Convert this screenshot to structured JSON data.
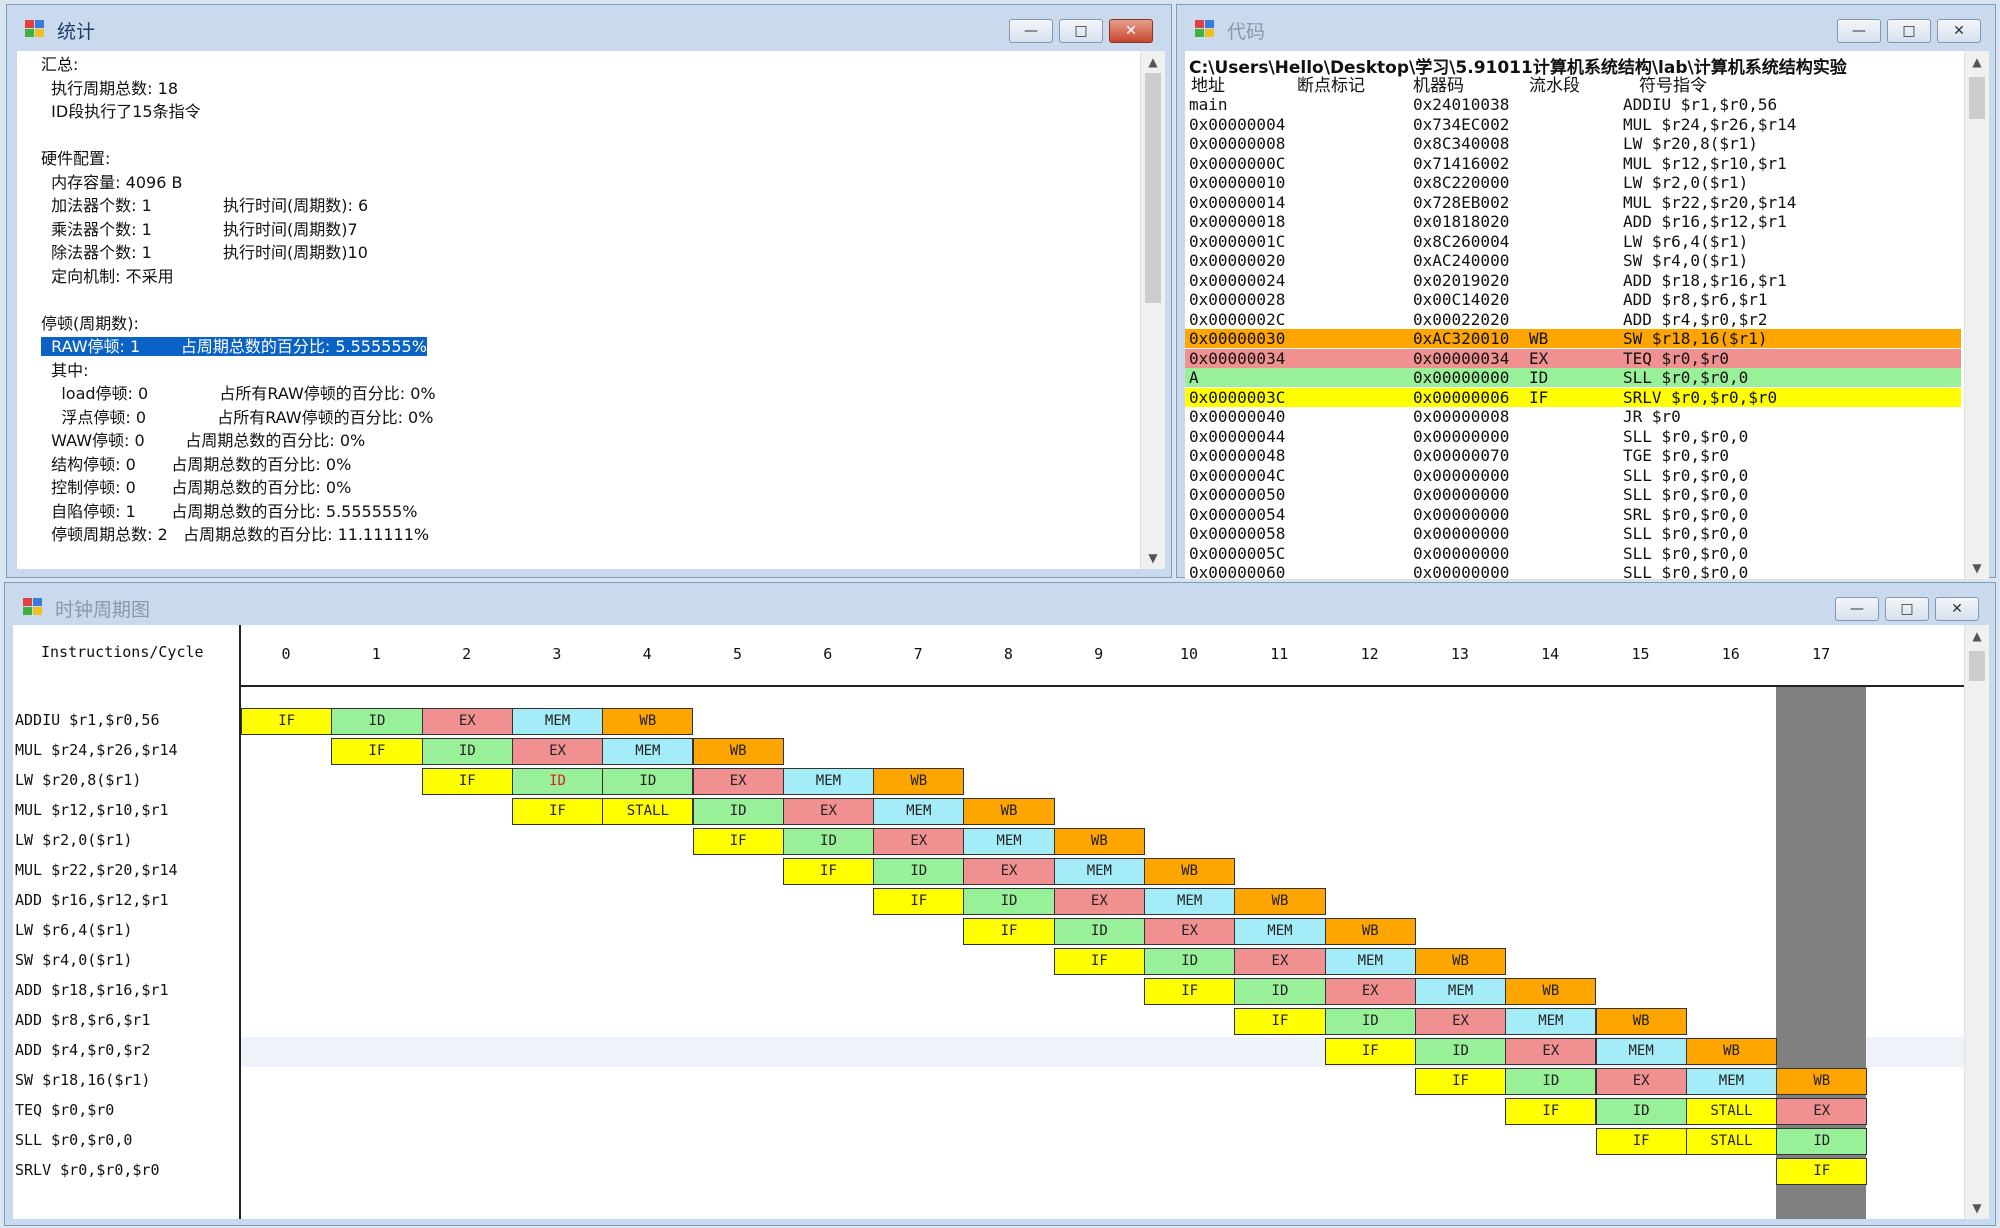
{
  "stats_window": {
    "title": "统计",
    "lines": [
      "汇总:",
      "  执行周期总数: 18",
      "  ID段执行了15条指令",
      "",
      "硬件配置:",
      "  内存容量: 4096 B",
      "  加法器个数: 1              执行时间(周期数): 6",
      "  乘法器个数: 1              执行时间(周期数)7",
      "  除法器个数: 1              执行时间(周期数)10",
      "  定向机制: 不采用",
      "",
      "停顿(周期数):",
      "  RAW停顿: 1        占周期总数的百分比: 5.555555%",
      "  其中:",
      "    load停顿: 0              占所有RAW停顿的百分比: 0%",
      "    浮点停顿: 0              占所有RAW停顿的百分比: 0%",
      "  WAW停顿: 0        占周期总数的百分比: 0%",
      "  结构停顿: 0       占周期总数的百分比: 0%",
      "  控制停顿: 0       占周期总数的百分比: 0%",
      "  自陷停顿: 1       占周期总数的百分比: 5.555555%",
      "  停顿周期总数: 2   占周期总数的百分比: 11.11111%"
    ],
    "selected_line": 12
  },
  "code_window": {
    "title": "代码",
    "path": "C:\\Users\\Hello\\Desktop\\学习\\5.91011计算机系统结构\\lab\\计算机系统结构实验",
    "headers": [
      "地址",
      "断点标记",
      "机器码",
      "流水段",
      "符号指令"
    ],
    "rows": [
      {
        "addr": "main",
        "bp": "",
        "code": "0x24010038",
        "stage": "",
        "instr": "ADDIU $r1,$r0,56",
        "hl": ""
      },
      {
        "addr": "0x00000004",
        "bp": "",
        "code": "0x734EC002",
        "stage": "",
        "instr": "MUL $r24,$r26,$r14",
        "hl": ""
      },
      {
        "addr": "0x00000008",
        "bp": "",
        "code": "0x8C340008",
        "stage": "",
        "instr": "LW $r20,8($r1)",
        "hl": ""
      },
      {
        "addr": "0x0000000C",
        "bp": "",
        "code": "0x71416002",
        "stage": "",
        "instr": "MUL $r12,$r10,$r1",
        "hl": ""
      },
      {
        "addr": "0x00000010",
        "bp": "",
        "code": "0x8C220000",
        "stage": "",
        "instr": "LW $r2,0($r1)",
        "hl": ""
      },
      {
        "addr": "0x00000014",
        "bp": "",
        "code": "0x728EB002",
        "stage": "",
        "instr": "MUL $r22,$r20,$r14",
        "hl": ""
      },
      {
        "addr": "0x00000018",
        "bp": "",
        "code": "0x01818020",
        "stage": "",
        "instr": "ADD $r16,$r12,$r1",
        "hl": ""
      },
      {
        "addr": "0x0000001C",
        "bp": "",
        "code": "0x8C260004",
        "stage": "",
        "instr": "LW $r6,4($r1)",
        "hl": ""
      },
      {
        "addr": "0x00000020",
        "bp": "",
        "code": "0xAC240000",
        "stage": "",
        "instr": "SW $r4,0($r1)",
        "hl": ""
      },
      {
        "addr": "0x00000024",
        "bp": "",
        "code": "0x02019020",
        "stage": "",
        "instr": "ADD $r18,$r16,$r1",
        "hl": ""
      },
      {
        "addr": "0x00000028",
        "bp": "",
        "code": "0x00C14020",
        "stage": "",
        "instr": "ADD $r8,$r6,$r1",
        "hl": ""
      },
      {
        "addr": "0x0000002C",
        "bp": "",
        "code": "0x00022020",
        "stage": "",
        "instr": "ADD $r4,$r0,$r2",
        "hl": ""
      },
      {
        "addr": "0x00000030",
        "bp": "",
        "code": "0xAC320010",
        "stage": "WB",
        "instr": "SW $r18,16($r1)",
        "hl": "#ffa500"
      },
      {
        "addr": "0x00000034",
        "bp": "",
        "code": "0x00000034",
        "stage": "EX",
        "instr": "TEQ $r0,$r0",
        "hl": "#f09090"
      },
      {
        "addr": "A",
        "bp": "",
        "code": "0x00000000",
        "stage": "ID",
        "instr": "SLL $r0,$r0,0",
        "hl": "#98f098"
      },
      {
        "addr": "0x0000003C",
        "bp": "",
        "code": "0x00000006",
        "stage": "IF",
        "instr": "SRLV $r0,$r0,$r0",
        "hl": "#ffff00"
      },
      {
        "addr": "0x00000040",
        "bp": "",
        "code": "0x00000008",
        "stage": "",
        "instr": "JR $r0",
        "hl": ""
      },
      {
        "addr": "0x00000044",
        "bp": "",
        "code": "0x00000000",
        "stage": "",
        "instr": "SLL $r0,$r0,0",
        "hl": ""
      },
      {
        "addr": "0x00000048",
        "bp": "",
        "code": "0x00000070",
        "stage": "",
        "instr": "TGE $r0,$r0",
        "hl": ""
      },
      {
        "addr": "0x0000004C",
        "bp": "",
        "code": "0x00000000",
        "stage": "",
        "instr": "SLL $r0,$r0,0",
        "hl": ""
      },
      {
        "addr": "0x00000050",
        "bp": "",
        "code": "0x00000000",
        "stage": "",
        "instr": "SLL $r0,$r0,0",
        "hl": ""
      },
      {
        "addr": "0x00000054",
        "bp": "",
        "code": "0x00000000",
        "stage": "",
        "instr": "SRL $r0,$r0,0",
        "hl": ""
      },
      {
        "addr": "0x00000058",
        "bp": "",
        "code": "0x00000000",
        "stage": "",
        "instr": "SLL $r0,$r0,0",
        "hl": ""
      },
      {
        "addr": "0x0000005C",
        "bp": "",
        "code": "0x00000000",
        "stage": "",
        "instr": "SLL $r0,$r0,0",
        "hl": ""
      },
      {
        "addr": "0x00000060",
        "bp": "",
        "code": "0x00000000",
        "stage": "",
        "instr": "SLL $r0,$r0,0",
        "hl": ""
      }
    ]
  },
  "clock_window": {
    "title": "时钟周期图",
    "header": "Instructions/Cycle",
    "cycles": [
      "0",
      "1",
      "2",
      "3",
      "4",
      "5",
      "6",
      "7",
      "8",
      "9",
      "10",
      "11",
      "12",
      "13",
      "14",
      "15",
      "16",
      "17"
    ],
    "current_cycle": 17,
    "selected_row": 11,
    "instructions": [
      {
        "label": "ADDIU $r1,$r0,56",
        "start": 0,
        "stages": [
          "IF",
          "ID",
          "EX",
          "MEM",
          "WB"
        ]
      },
      {
        "label": "MUL $r24,$r26,$r14",
        "start": 1,
        "stages": [
          "IF",
          "ID",
          "EX",
          "MEM",
          "WB"
        ]
      },
      {
        "label": "LW $r20,8($r1)",
        "start": 2,
        "stages": [
          "IF",
          "ID",
          "ID",
          "EX",
          "MEM",
          "WB"
        ],
        "red_index": 1
      },
      {
        "label": "MUL $r12,$r10,$r1",
        "start": 3,
        "stages": [
          "IF",
          "STALL",
          "ID",
          "EX",
          "MEM",
          "WB"
        ]
      },
      {
        "label": "LW $r2,0($r1)",
        "start": 5,
        "stages": [
          "IF",
          "ID",
          "EX",
          "MEM",
          "WB"
        ]
      },
      {
        "label": "MUL $r22,$r20,$r14",
        "start": 6,
        "stages": [
          "IF",
          "ID",
          "EX",
          "MEM",
          "WB"
        ]
      },
      {
        "label": "ADD $r16,$r12,$r1",
        "start": 7,
        "stages": [
          "IF",
          "ID",
          "EX",
          "MEM",
          "WB"
        ]
      },
      {
        "label": "LW $r6,4($r1)",
        "start": 8,
        "stages": [
          "IF",
          "ID",
          "EX",
          "MEM",
          "WB"
        ]
      },
      {
        "label": "SW $r4,0($r1)",
        "start": 9,
        "stages": [
          "IF",
          "ID",
          "EX",
          "MEM",
          "WB"
        ]
      },
      {
        "label": "ADD $r18,$r16,$r1",
        "start": 10,
        "stages": [
          "IF",
          "ID",
          "EX",
          "MEM",
          "WB"
        ]
      },
      {
        "label": "ADD $r8,$r6,$r1",
        "start": 11,
        "stages": [
          "IF",
          "ID",
          "EX",
          "MEM",
          "WB"
        ]
      },
      {
        "label": "ADD $r4,$r0,$r2",
        "start": 12,
        "stages": [
          "IF",
          "ID",
          "EX",
          "MEM",
          "WB"
        ]
      },
      {
        "label": "SW $r18,16($r1)",
        "start": 13,
        "stages": [
          "IF",
          "ID",
          "EX",
          "MEM",
          "WB"
        ]
      },
      {
        "label": "TEQ $r0,$r0",
        "start": 14,
        "stages": [
          "IF",
          "ID",
          "STALL",
          "EX"
        ]
      },
      {
        "label": "SLL $r0,$r0,0",
        "start": 15,
        "stages": [
          "IF",
          "STALL",
          "ID"
        ]
      },
      {
        "label": "SRLV $r0,$r0,$r0",
        "start": 17,
        "stages": [
          "IF"
        ]
      }
    ]
  },
  "window_buttons": {
    "minimize": "—",
    "maximize": "□",
    "close": "✕"
  },
  "colors": {
    "IF": "#ffff00",
    "ID": "#98f098",
    "EX": "#f09090",
    "MEM": "#a4ecf8",
    "WB": "#ffa500",
    "STALL": "#ffff00",
    "selection": "#0a62c4"
  }
}
